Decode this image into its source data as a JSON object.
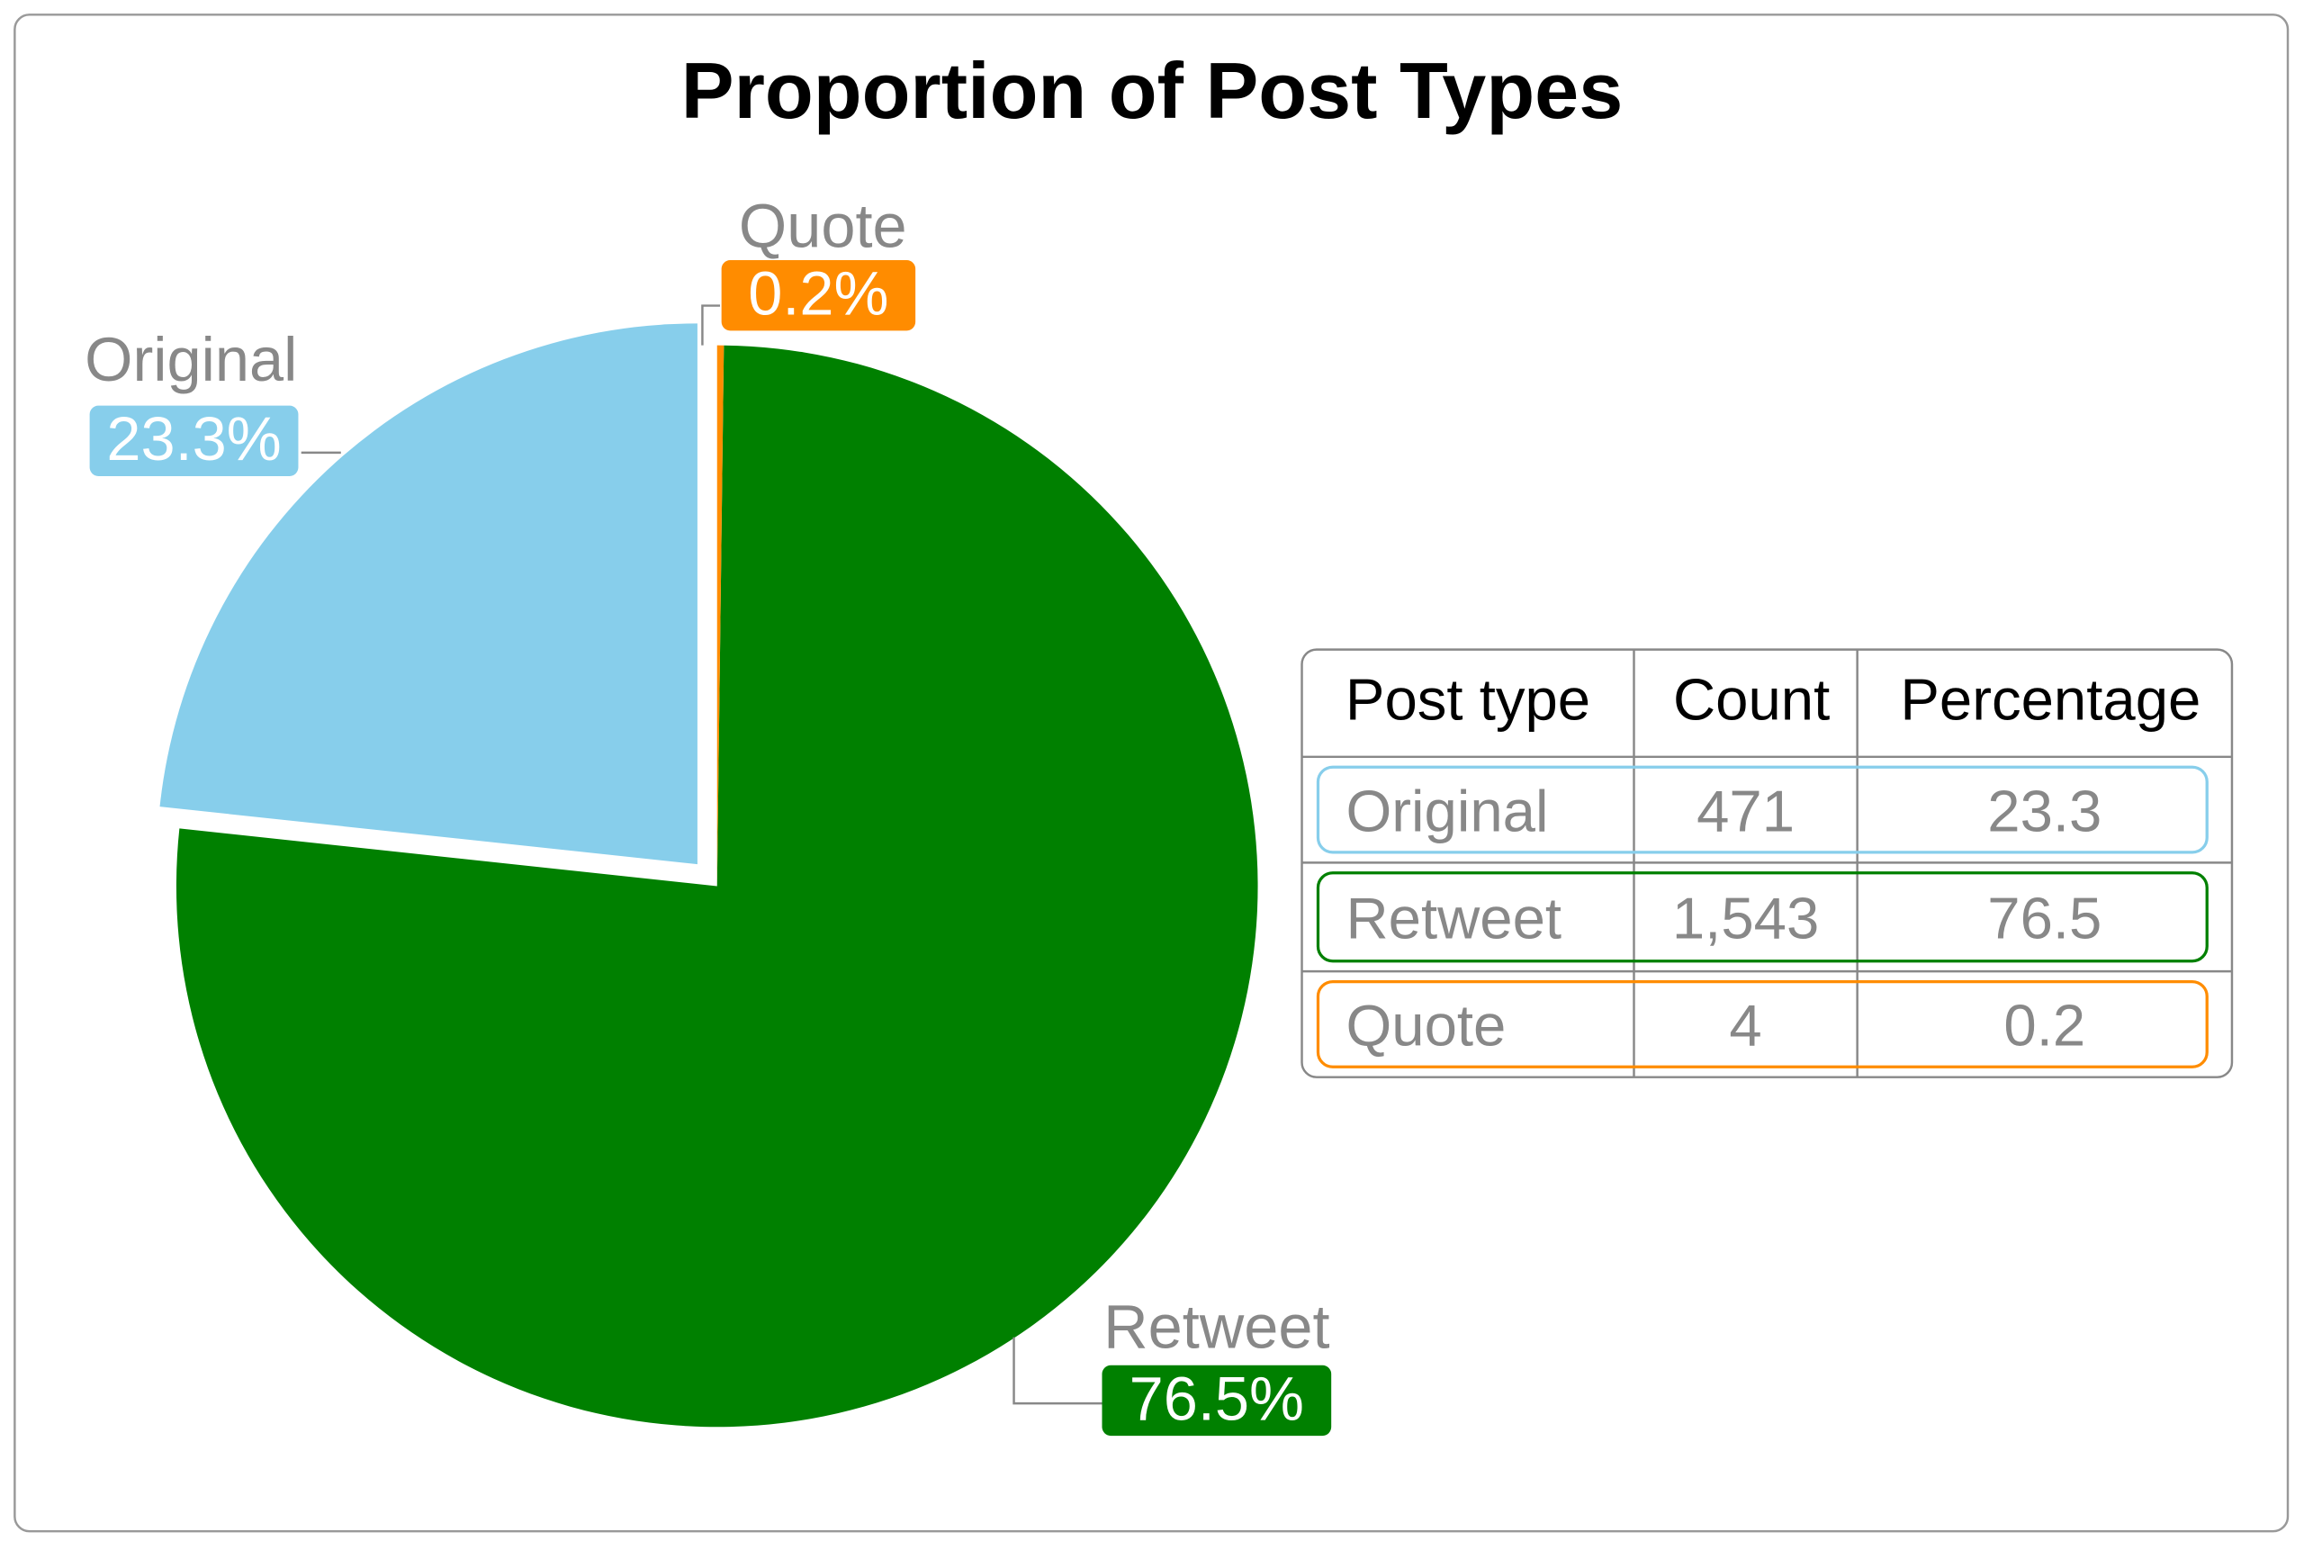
{
  "chart_data": {
    "type": "pie",
    "title": "Proportion of Post Types",
    "categories": [
      "Original",
      "Retweet",
      "Quote"
    ],
    "values": [
      23.3,
      76.5,
      0.2
    ],
    "value_labels": [
      "23.3%",
      "76.5%",
      "0.2%"
    ],
    "colors": [
      "#87ceeb",
      "#008000",
      "#ff8c00"
    ]
  },
  "table": {
    "header": [
      "Post type",
      "Count",
      "Percentage"
    ],
    "rows": [
      [
        "Original",
        "471",
        "23.3"
      ],
      [
        "Retweet",
        "1,543",
        "76.5"
      ],
      [
        "Quote",
        "4",
        "0.2"
      ]
    ]
  }
}
